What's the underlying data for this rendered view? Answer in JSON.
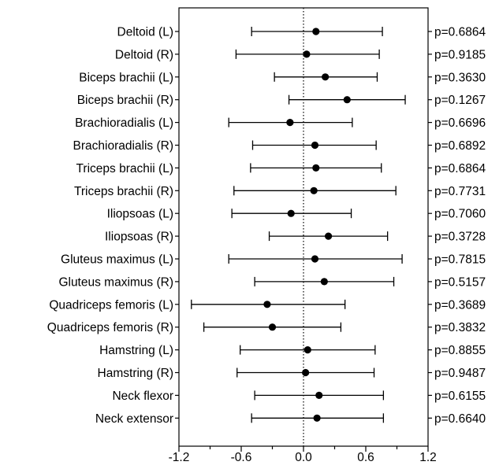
{
  "chart_data": {
    "type": "forest",
    "title": "",
    "xlabel": "",
    "ylabel": "",
    "xlim": [
      -1.2,
      1.2
    ],
    "xticks": [
      "-1.2",
      "-0.6",
      "0.0",
      "0.6",
      "1.2"
    ],
    "reference_line": {
      "x": 0,
      "style": "dotted"
    },
    "grid": false,
    "rows": [
      {
        "label": "Deltoid (L)",
        "estimate": 0.12,
        "lower": -0.5,
        "upper": 0.76,
        "p": "p=0.6864"
      },
      {
        "label": "Deltoid (R)",
        "estimate": 0.03,
        "lower": -0.65,
        "upper": 0.73,
        "p": "p=0.9185"
      },
      {
        "label": "Biceps brachii (L)",
        "estimate": 0.21,
        "lower": -0.28,
        "upper": 0.71,
        "p": "p=0.3630"
      },
      {
        "label": "Biceps brachii (R)",
        "estimate": 0.42,
        "lower": -0.14,
        "upper": 0.98,
        "p": "p=0.1267"
      },
      {
        "label": "Brachioradialis (L)",
        "estimate": -0.13,
        "lower": -0.72,
        "upper": 0.47,
        "p": "p=0.6696"
      },
      {
        "label": "Brachioradialis (R)",
        "estimate": 0.11,
        "lower": -0.49,
        "upper": 0.7,
        "p": "p=0.6892"
      },
      {
        "label": "Triceps brachii (L)",
        "estimate": 0.12,
        "lower": -0.51,
        "upper": 0.75,
        "p": "p=0.6864"
      },
      {
        "label": "Triceps brachii (R)",
        "estimate": 0.1,
        "lower": -0.67,
        "upper": 0.89,
        "p": "p=0.7731"
      },
      {
        "label": "Iliopsoas (L)",
        "estimate": -0.12,
        "lower": -0.69,
        "upper": 0.46,
        "p": "p=0.7060"
      },
      {
        "label": "Iliopsoas (R)",
        "estimate": 0.24,
        "lower": -0.33,
        "upper": 0.81,
        "p": "p=0.3728"
      },
      {
        "label": "Gluteus maximus (L)",
        "estimate": 0.11,
        "lower": -0.72,
        "upper": 0.95,
        "p": "p=0.7815"
      },
      {
        "label": "Gluteus maximus (R)",
        "estimate": 0.2,
        "lower": -0.47,
        "upper": 0.87,
        "p": "p=0.5157"
      },
      {
        "label": "Quadriceps femoris (L)",
        "estimate": -0.35,
        "lower": -1.08,
        "upper": 0.4,
        "p": "p=0.3689"
      },
      {
        "label": "Quadriceps femoris (R)",
        "estimate": -0.3,
        "lower": -0.96,
        "upper": 0.36,
        "p": "p=0.3832"
      },
      {
        "label": "Hamstring (L)",
        "estimate": 0.04,
        "lower": -0.61,
        "upper": 0.69,
        "p": "p=0.8855"
      },
      {
        "label": "Hamstring (R)",
        "estimate": 0.02,
        "lower": -0.64,
        "upper": 0.68,
        "p": "p=0.9487"
      },
      {
        "label": "Neck flexor",
        "estimate": 0.15,
        "lower": -0.47,
        "upper": 0.77,
        "p": "p=0.6155"
      },
      {
        "label": "Neck extensor",
        "estimate": 0.13,
        "lower": -0.5,
        "upper": 0.77,
        "p": "p=0.6640"
      }
    ]
  }
}
